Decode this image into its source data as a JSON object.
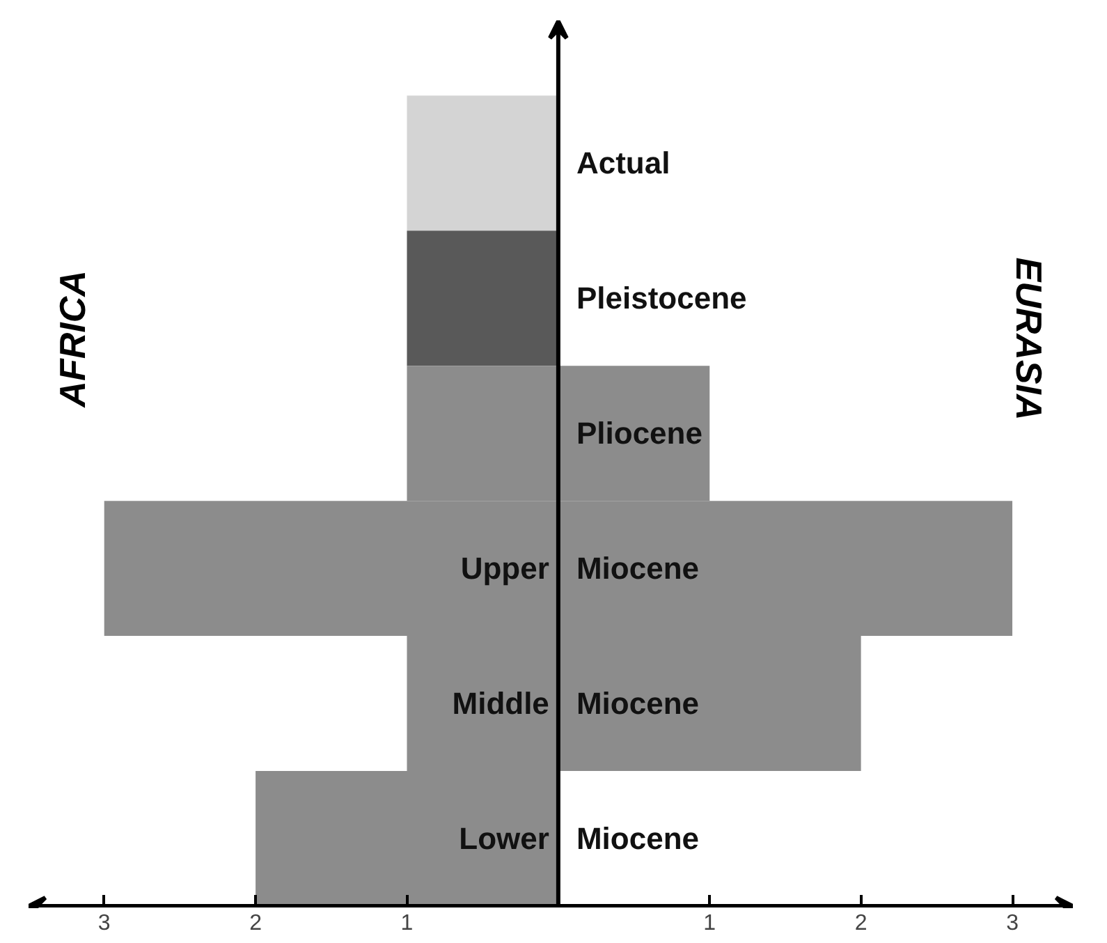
{
  "chart_data": {
    "type": "bar",
    "orientation": "horizontal",
    "stacked": true,
    "categories": [
      "Actual",
      "Pleistocene",
      "Pliocene",
      "Upper Miocene",
      "Middle Miocene",
      "Lower Miocene"
    ],
    "series": [
      {
        "name": "AFRICA",
        "colors": [
          "#d4d4d4",
          "#595959",
          "#8c8c8c",
          "#8c8c8c",
          "#8c8c8c",
          "#8c8c8c"
        ],
        "values": [
          -1,
          -1,
          -1,
          -3,
          -1,
          -2
        ]
      },
      {
        "name": "EURASIA",
        "colors": [
          "#8c8c8c",
          "#8c8c8c",
          "#8c8c8c",
          "#8c8c8c",
          "#8c8c8c",
          "#8c8c8c"
        ],
        "values": [
          null,
          null,
          1,
          3,
          2,
          null
        ]
      }
    ],
    "xlim": [
      -3.5,
      3.4
    ],
    "xticks": [
      {
        "value": -3,
        "label": "3"
      },
      {
        "value": -2,
        "label": "2"
      },
      {
        "value": -1,
        "label": "1"
      },
      {
        "value": 1,
        "label": "1"
      },
      {
        "value": 2,
        "label": "2"
      },
      {
        "value": 3,
        "label": "3"
      }
    ],
    "grid": false
  }
}
